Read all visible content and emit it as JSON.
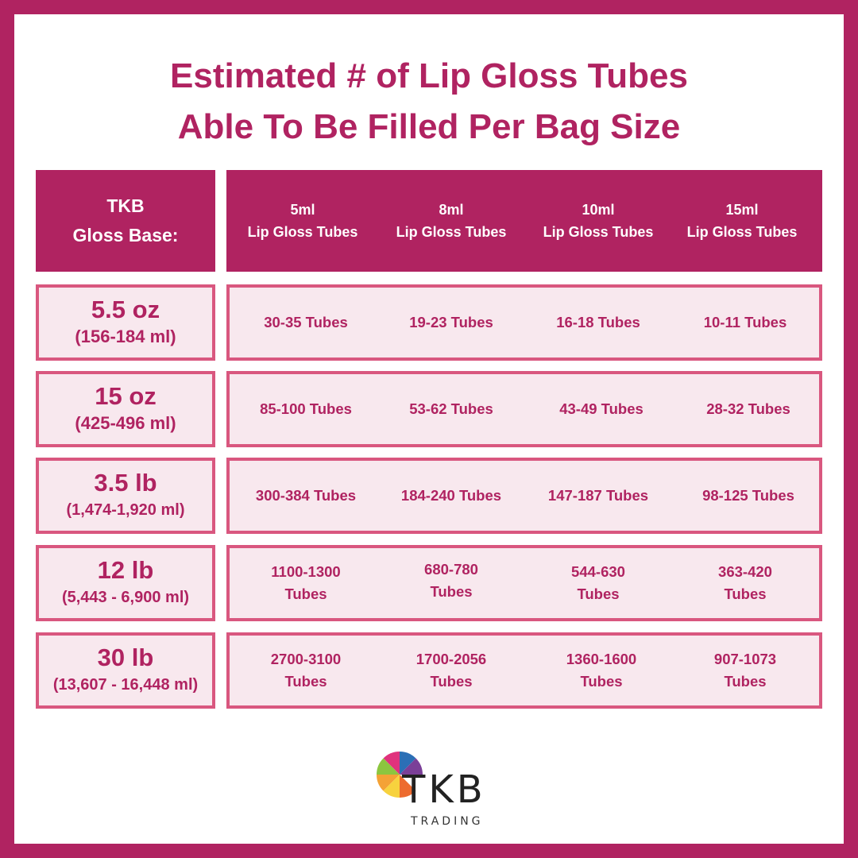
{
  "title": {
    "line1": "Estimated # of Lip Gloss Tubes",
    "line2": "Able To Be Filled Per Bag Size"
  },
  "header": {
    "left": {
      "line1": "TKB",
      "line2": "Gloss Base:"
    },
    "columns": [
      {
        "size": "5ml",
        "label": "Lip Gloss Tubes"
      },
      {
        "size": "8ml",
        "label": "Lip Gloss Tubes"
      },
      {
        "size": "10ml",
        "label": "Lip Gloss Tubes"
      },
      {
        "size": "15ml",
        "label": "Lip Gloss Tubes"
      }
    ]
  },
  "rows": [
    {
      "size": "5.5 oz",
      "volume": "(156-184 ml)",
      "cells": [
        [
          "30-35 Tubes"
        ],
        [
          "19-23 Tubes"
        ],
        [
          "16-18 Tubes"
        ],
        [
          "10-11 Tubes"
        ]
      ]
    },
    {
      "size": "15 oz",
      "volume": "(425-496 ml)",
      "cells": [
        [
          "85-100 Tubes"
        ],
        [
          "53-62 Tubes"
        ],
        [
          "43-49 Tubes"
        ],
        [
          "28-32 Tubes"
        ]
      ]
    },
    {
      "size": "3.5 lb",
      "volume": "(1,474-1,920 ml)",
      "cells": [
        [
          "300-384 Tubes"
        ],
        [
          "184-240 Tubes"
        ],
        [
          "147-187 Tubes"
        ],
        [
          "98-125 Tubes"
        ]
      ]
    },
    {
      "size": "12 lb",
      "volume": "(5,443 - 6,900 ml)",
      "cells": [
        [
          "1100-1300",
          "Tubes"
        ],
        [
          "680-780",
          "Tubes"
        ],
        [
          "544-630",
          "Tubes"
        ],
        [
          "363-420",
          "Tubes"
        ]
      ]
    },
    {
      "size": "30 lb",
      "volume": "(13,607 - 16,448 ml)",
      "cells": [
        [
          "2700-3100",
          "Tubes"
        ],
        [
          "1700-2056",
          "Tubes"
        ],
        [
          "1360-1600",
          "Tubes"
        ],
        [
          "907-1073",
          "Tubes"
        ]
      ]
    }
  ],
  "logo": {
    "name": "TKB",
    "sub": "TRADING"
  },
  "colors": {
    "brand": "#b02361",
    "row_border": "#d9577f",
    "row_fill": "#f8e8ee"
  }
}
